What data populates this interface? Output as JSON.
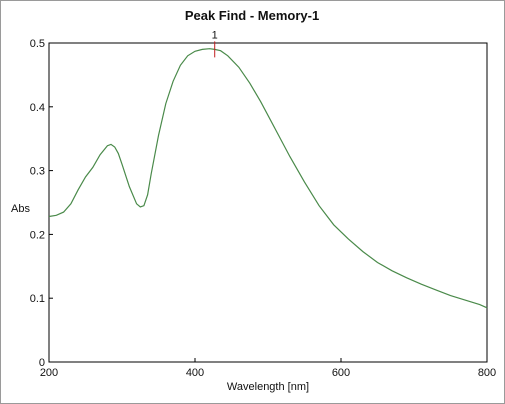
{
  "chart_data": {
    "type": "line",
    "title": "Peak Find - Memory-1",
    "xlabel": "Wavelength [nm]",
    "ylabel": "Abs",
    "xlim": [
      200,
      800
    ],
    "ylim": [
      0,
      0.5
    ],
    "x_ticks": [
      "200",
      "400",
      "600",
      "800"
    ],
    "y_ticks": [
      "0",
      "0.1",
      "0.2",
      "0.3",
      "0.4",
      "0.5"
    ],
    "grid": false,
    "line_color": "#4a8a4a",
    "marker_color": "#c02020",
    "peaks": [
      {
        "label": "1",
        "x": 427,
        "y": 0.49
      }
    ],
    "series": [
      {
        "x": [
          200,
          210,
          220,
          230,
          240,
          250,
          260,
          270,
          280,
          285,
          290,
          295,
          300,
          310,
          320,
          325,
          330,
          335,
          340,
          350,
          360,
          370,
          380,
          390,
          400,
          410,
          420,
          427,
          435,
          445,
          460,
          475,
          490,
          510,
          530,
          550,
          570,
          590,
          610,
          630,
          650,
          670,
          690,
          710,
          730,
          750,
          770,
          790,
          800
        ],
        "y": [
          0.228,
          0.23,
          0.235,
          0.248,
          0.27,
          0.29,
          0.305,
          0.325,
          0.339,
          0.341,
          0.337,
          0.327,
          0.31,
          0.275,
          0.248,
          0.243,
          0.245,
          0.262,
          0.295,
          0.355,
          0.405,
          0.44,
          0.465,
          0.48,
          0.487,
          0.49,
          0.491,
          0.49,
          0.488,
          0.48,
          0.462,
          0.437,
          0.408,
          0.365,
          0.322,
          0.282,
          0.245,
          0.215,
          0.193,
          0.173,
          0.156,
          0.143,
          0.132,
          0.122,
          0.113,
          0.104,
          0.097,
          0.09,
          0.085
        ]
      }
    ]
  }
}
